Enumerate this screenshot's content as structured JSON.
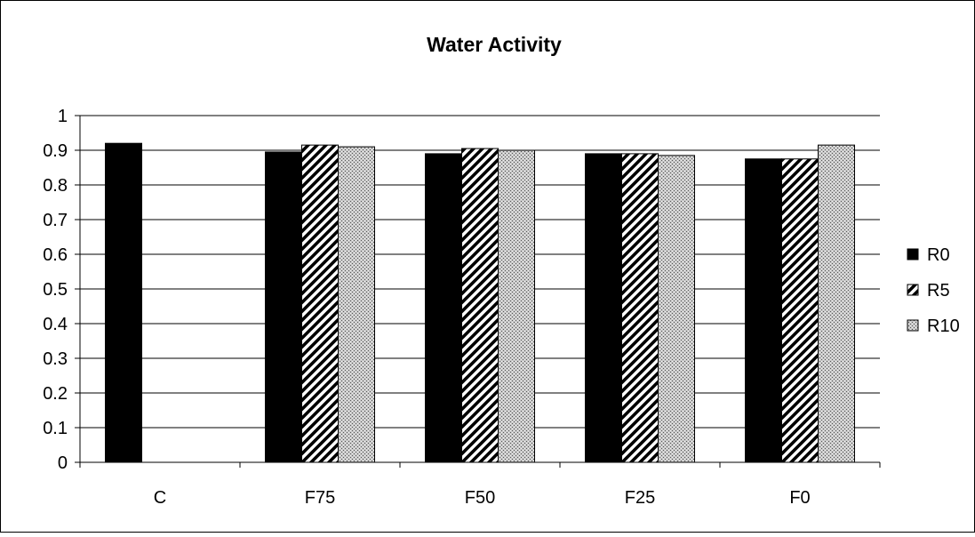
{
  "chart_data": {
    "type": "bar",
    "title": "Water Activity",
    "xlabel": "",
    "ylabel": "",
    "categories": [
      "C",
      "F75",
      "F50",
      "F25",
      "F0"
    ],
    "series": [
      {
        "name": "R0",
        "values": [
          0.92,
          0.895,
          0.89,
          0.89,
          0.875
        ],
        "fill": "solid-black"
      },
      {
        "name": "R5",
        "values": [
          null,
          0.915,
          0.905,
          0.89,
          0.875
        ],
        "fill": "diagonal-stripes"
      },
      {
        "name": "R10",
        "values": [
          null,
          0.91,
          0.9,
          0.885,
          0.915
        ],
        "fill": "fine-gray-dots"
      }
    ],
    "ylim": [
      0,
      1
    ],
    "yticks": [
      "0",
      "0.1",
      "0.2",
      "0.3",
      "0.4",
      "0.5",
      "0.6",
      "0.7",
      "0.8",
      "0.9",
      "1"
    ],
    "grid": "horizontal",
    "legend_position": "right",
    "colors": {
      "bar_stroke": "#000000",
      "grid": "#000000",
      "background": "#ffffff"
    }
  }
}
